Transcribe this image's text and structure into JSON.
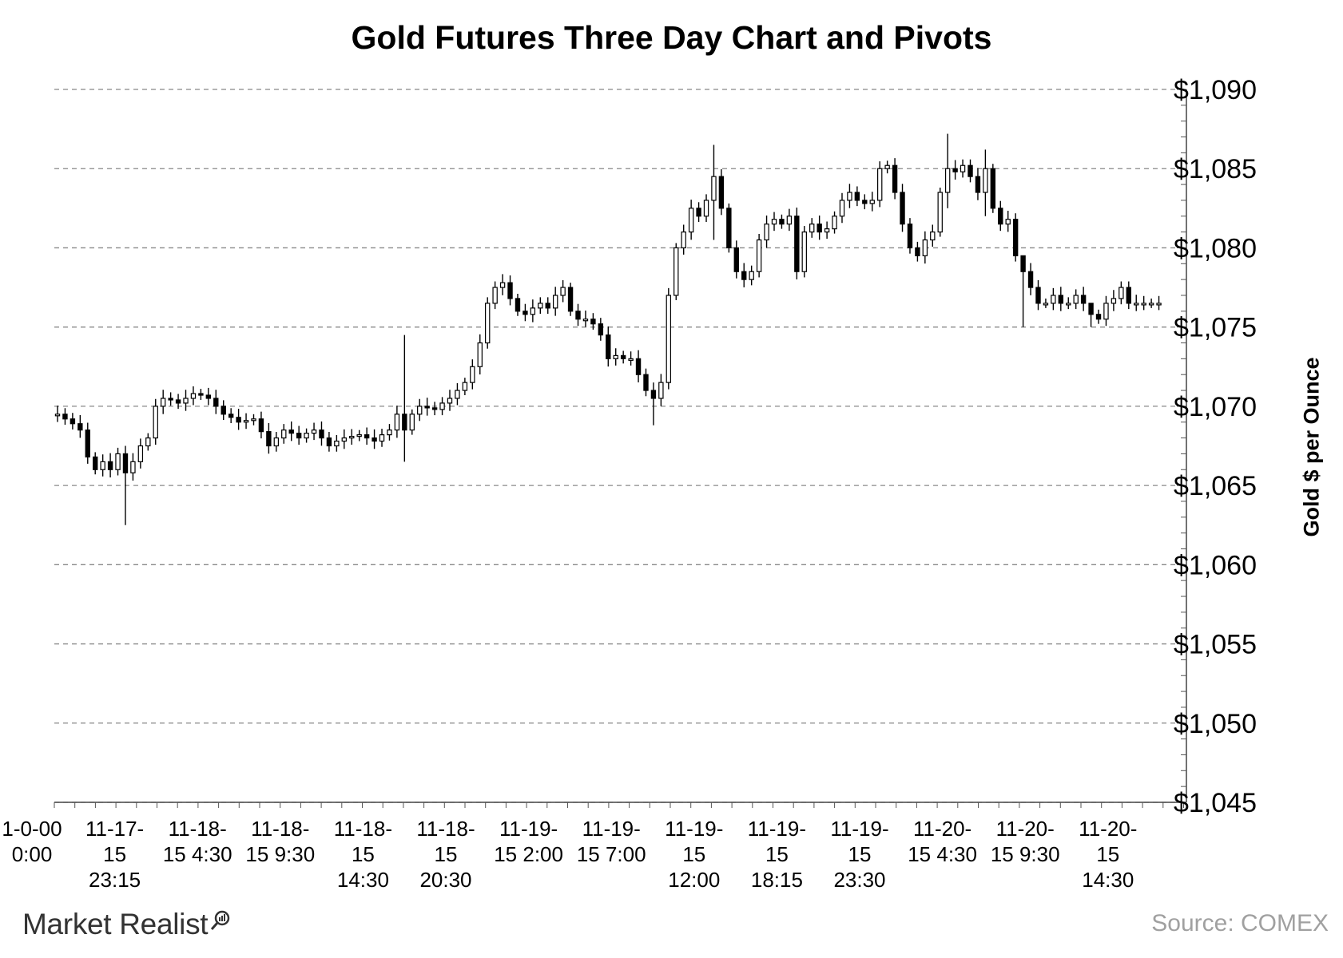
{
  "chart_data": {
    "type": "candlestick",
    "title": "Gold Futures Three Day Chart and Pivots",
    "ylabel": "Gold $ per  Ounce",
    "xlabel": "",
    "ylim": [
      1045,
      1090
    ],
    "y_ticks": [
      1045,
      1050,
      1055,
      1060,
      1065,
      1070,
      1075,
      1080,
      1085,
      1090
    ],
    "y_tick_labels": [
      "$1,045",
      "$1,050",
      "$1,055",
      "$1,060",
      "$1,065",
      "$1,070",
      "$1,075",
      "$1,080",
      "$1,085",
      "$1,090"
    ],
    "grid": "horizontal-dashed",
    "x_tick_labels": [
      [
        "1-0-00",
        "0:00"
      ],
      [
        "11-17-",
        "15",
        "23:15"
      ],
      [
        "11-18-",
        "15 4:30"
      ],
      [
        "11-18-",
        "15 9:30"
      ],
      [
        "11-18-",
        "15",
        "14:30"
      ],
      [
        "11-18-",
        "15",
        "20:30"
      ],
      [
        "11-19-",
        "15 2:00"
      ],
      [
        "11-19-",
        "15 7:00"
      ],
      [
        "11-19-",
        "15",
        "12:00"
      ],
      [
        "11-19-",
        "15",
        "18:15"
      ],
      [
        "11-19-",
        "15",
        "23:30"
      ],
      [
        "11-20-",
        "15 4:30"
      ],
      [
        "11-20-",
        "15 9:30"
      ],
      [
        "11-20-",
        "15",
        "14:30"
      ]
    ],
    "close_path": [
      [
        0,
        1069.5
      ],
      [
        1,
        1069.2
      ],
      [
        3,
        1068.5
      ],
      [
        4,
        1066.8
      ],
      [
        5,
        1066.0
      ],
      [
        6,
        1066.5
      ],
      [
        7,
        1066.0
      ],
      [
        8,
        1067.0
      ],
      [
        9,
        1065.8
      ],
      [
        10,
        1066.5
      ],
      [
        11,
        1067.5
      ],
      [
        12,
        1068.0
      ],
      [
        13,
        1070.0
      ],
      [
        14,
        1070.5
      ],
      [
        16,
        1070.2
      ],
      [
        18,
        1070.8
      ],
      [
        20,
        1070.5
      ],
      [
        22,
        1069.5
      ],
      [
        24,
        1069.0
      ],
      [
        26,
        1069.2
      ],
      [
        28,
        1067.5
      ],
      [
        30,
        1068.5
      ],
      [
        32,
        1068.0
      ],
      [
        34,
        1068.5
      ],
      [
        36,
        1067.5
      ],
      [
        38,
        1068.0
      ],
      [
        40,
        1068.2
      ],
      [
        42,
        1067.8
      ],
      [
        44,
        1068.5
      ],
      [
        45,
        1069.5
      ],
      [
        46,
        1068.5
      ],
      [
        47,
        1069.5
      ],
      [
        48,
        1070.0
      ],
      [
        50,
        1069.8
      ],
      [
        52,
        1070.5
      ],
      [
        54,
        1071.5
      ],
      [
        55,
        1072.5
      ],
      [
        56,
        1074.0
      ],
      [
        57,
        1076.5
      ],
      [
        58,
        1077.5
      ],
      [
        59,
        1077.8
      ],
      [
        60,
        1076.8
      ],
      [
        61,
        1076.0
      ],
      [
        62,
        1075.8
      ],
      [
        63,
        1076.2
      ],
      [
        64,
        1076.5
      ],
      [
        65,
        1076.2
      ],
      [
        66,
        1077.0
      ],
      [
        67,
        1077.5
      ],
      [
        68,
        1076.0
      ],
      [
        69,
        1075.5
      ],
      [
        70,
        1075.5
      ],
      [
        71,
        1075.2
      ],
      [
        72,
        1074.5
      ],
      [
        73,
        1073.0
      ],
      [
        74,
        1073.2
      ],
      [
        75,
        1073.0
      ],
      [
        76,
        1073.0
      ],
      [
        77,
        1072.0
      ],
      [
        78,
        1071.0
      ],
      [
        79,
        1070.5
      ],
      [
        80,
        1071.5
      ],
      [
        81,
        1077.0
      ],
      [
        82,
        1080.0
      ],
      [
        83,
        1081.0
      ],
      [
        84,
        1082.5
      ],
      [
        85,
        1082.0
      ],
      [
        86,
        1083.0
      ],
      [
        87,
        1084.5
      ],
      [
        88,
        1082.5
      ],
      [
        89,
        1080.0
      ],
      [
        90,
        1078.5
      ],
      [
        91,
        1078.0
      ],
      [
        92,
        1078.5
      ],
      [
        93,
        1080.5
      ],
      [
        94,
        1081.5
      ],
      [
        95,
        1081.8
      ],
      [
        96,
        1081.5
      ],
      [
        97,
        1082.0
      ],
      [
        98,
        1078.5
      ],
      [
        99,
        1081.0
      ],
      [
        100,
        1081.5
      ],
      [
        101,
        1081.0
      ],
      [
        102,
        1081.2
      ],
      [
        103,
        1082.0
      ],
      [
        104,
        1083.0
      ],
      [
        105,
        1083.5
      ],
      [
        106,
        1083.0
      ],
      [
        107,
        1082.8
      ],
      [
        108,
        1083.0
      ],
      [
        109,
        1085.0
      ],
      [
        110,
        1085.2
      ],
      [
        111,
        1083.5
      ],
      [
        112,
        1081.5
      ],
      [
        113,
        1080.0
      ],
      [
        114,
        1079.5
      ],
      [
        115,
        1080.5
      ],
      [
        116,
        1081.0
      ],
      [
        117,
        1083.5
      ],
      [
        118,
        1085.0
      ],
      [
        119,
        1084.8
      ],
      [
        120,
        1085.2
      ],
      [
        121,
        1084.5
      ],
      [
        122,
        1083.5
      ],
      [
        123,
        1085.0
      ],
      [
        124,
        1082.5
      ],
      [
        125,
        1081.5
      ],
      [
        126,
        1081.8
      ],
      [
        127,
        1079.5
      ],
      [
        128,
        1078.5
      ],
      [
        129,
        1077.5
      ],
      [
        130,
        1076.5
      ],
      [
        131,
        1076.5
      ],
      [
        132,
        1077.0
      ],
      [
        133,
        1076.5
      ],
      [
        134,
        1076.5
      ],
      [
        135,
        1077.0
      ],
      [
        136,
        1076.5
      ],
      [
        137,
        1075.8
      ],
      [
        138,
        1075.5
      ],
      [
        139,
        1076.5
      ],
      [
        140,
        1076.8
      ],
      [
        141,
        1077.5
      ],
      [
        142,
        1076.5
      ]
    ],
    "spikes": [
      [
        9,
        1062.5,
        1067.5
      ],
      [
        46,
        1066.5,
        1074.5
      ],
      [
        79,
        1068.8,
        1071.5
      ],
      [
        87,
        1080.5,
        1086.5
      ],
      [
        118,
        1082.5,
        1087.2
      ],
      [
        123,
        1082.0,
        1086.2
      ],
      [
        137,
        1075.0,
        1076.5
      ],
      [
        128,
        1075.0,
        1078.5
      ]
    ]
  },
  "source": "Source: COMEX",
  "logo": {
    "text": "Market Realist"
  }
}
